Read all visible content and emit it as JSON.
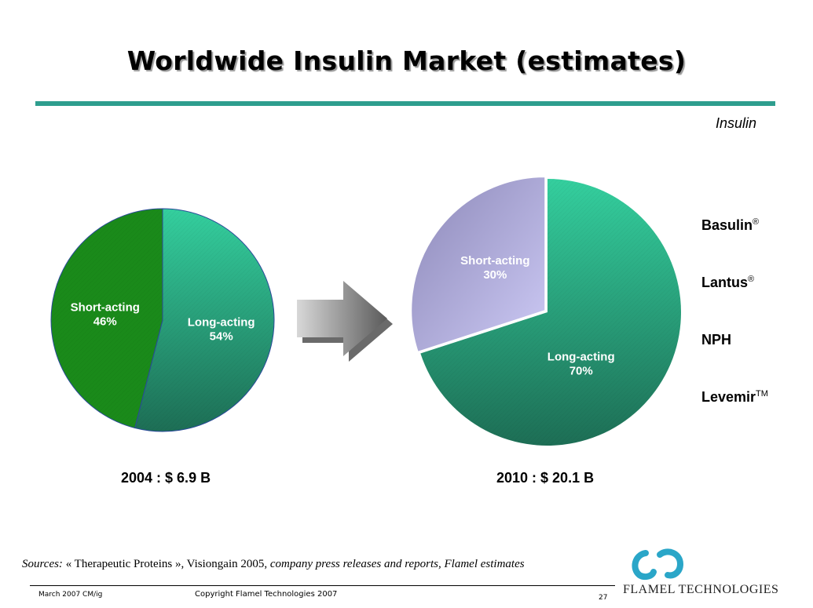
{
  "slide": {
    "title": "Worldwide Insulin Market (estimates)",
    "section_tag": "Insulin"
  },
  "chart_data": [
    {
      "type": "pie",
      "caption": "2004 : $ 6.9 B",
      "slices": [
        {
          "label": "Short-acting",
          "value": 46,
          "value_label": "46%",
          "color": "#1a8a1a"
        },
        {
          "label": "Long-acting",
          "value": 54,
          "value_label": "54%",
          "color": "#2fc79a"
        }
      ]
    },
    {
      "type": "pie",
      "caption": "2010 : $ 20.1 B",
      "slices": [
        {
          "label": "Short-acting",
          "value": 30,
          "value_label": "30%",
          "color": "#a9a6d8"
        },
        {
          "label": "Long-acting",
          "value": 70,
          "value_label": "70%",
          "color": "#2fc79a"
        }
      ]
    }
  ],
  "products": [
    {
      "name": "Basulin",
      "mark": "®"
    },
    {
      "name": "Lantus",
      "mark": "®"
    },
    {
      "name": "NPH",
      "mark": ""
    },
    {
      "name": "Levemir",
      "mark": "TM"
    }
  ],
  "sources": {
    "prefix": "Sources:",
    "body": " « Therapeutic Proteins », Visiongain 2005,",
    "rest": " company press releases and reports, Flamel estimates"
  },
  "footer": {
    "date": "March 2007 CM/ig",
    "copyright": "Copyright Flamel Technologies 2007",
    "page": "27",
    "brand": "FLAMEL TECHNOLOGIES"
  },
  "colors": {
    "accent": "#2e9e8e",
    "logo": "#2aa6c8",
    "arrow": "#8a8a8a"
  }
}
